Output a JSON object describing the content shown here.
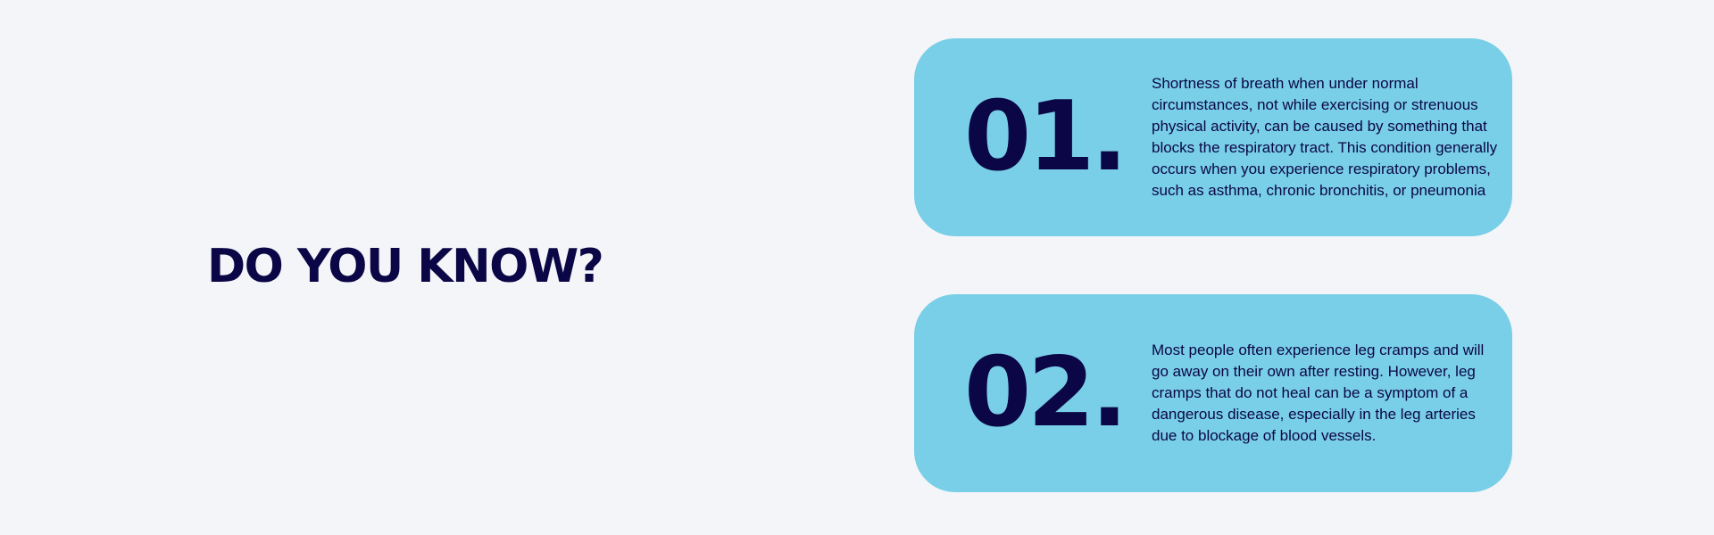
{
  "headline": "DO YOU KNOW?",
  "cards": [
    {
      "number": "01.",
      "text": "Shortness of breath when under normal circumstances, not while exercising or strenuous physical activity, can be caused by something that blocks the respiratory tract.  This condition generally occurs when you experience respiratory problems, such as asthma, chronic bronchitis, or pneumonia"
    },
    {
      "number": "02.",
      "text": "Most people often experience leg cramps and will go away on their own after resting. However, leg cramps that do not heal can be a symptom of a dangerous disease, especially in the leg arteries due to blockage of blood vessels."
    }
  ],
  "colors": {
    "background": "#f4f5f8",
    "card": "#79cfe8",
    "text": "#0b0645"
  }
}
